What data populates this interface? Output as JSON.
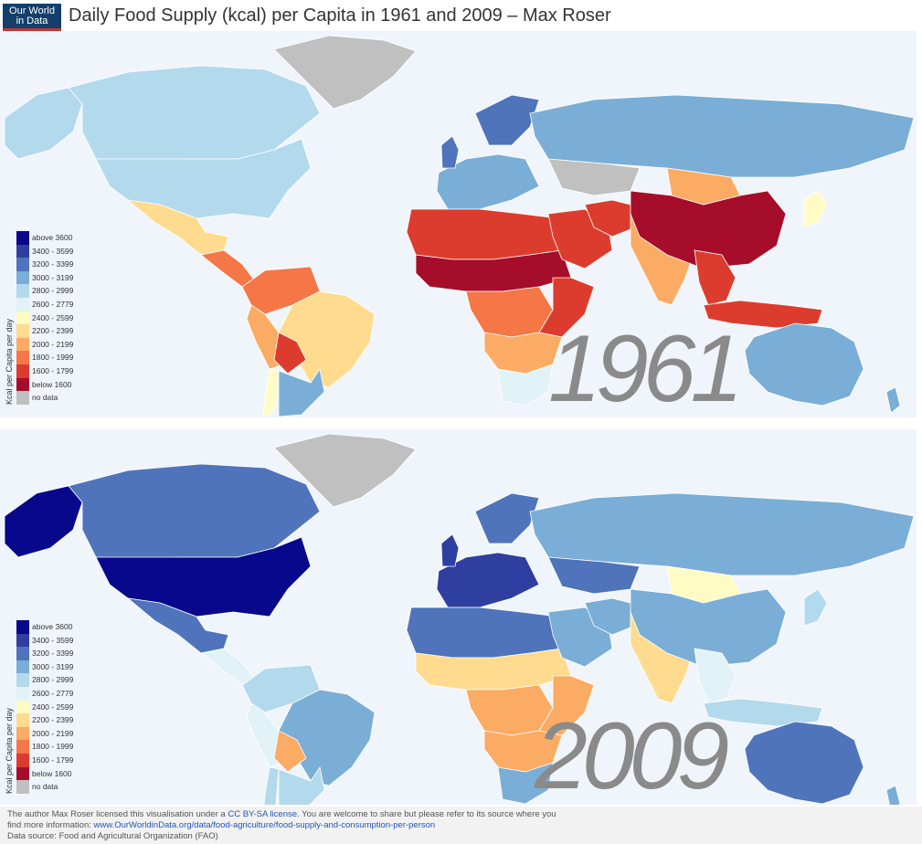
{
  "header": {
    "logo": [
      "Our World",
      "in Data"
    ],
    "title": "Daily Food Supply (kcal) per Capita in 1961 and 2009 – Max Roser"
  },
  "legend": {
    "axis_title": "Kcal per Capita per day",
    "items": [
      {
        "label": "above 3600",
        "color": "#08088c"
      },
      {
        "label": "3400 - 3599",
        "color": "#2e3fa0"
      },
      {
        "label": "3200 - 3399",
        "color": "#4f74bb"
      },
      {
        "label": "3000 - 3199",
        "color": "#7aaed6"
      },
      {
        "label": "2800 - 2999",
        "color": "#b3d9ec"
      },
      {
        "label": "2600 - 2779",
        "color": "#e2f3f7"
      },
      {
        "label": "2400 - 2599",
        "color": "#fffbc4"
      },
      {
        "label": "2200 - 2399",
        "color": "#fedb8f"
      },
      {
        "label": "2000 - 2199",
        "color": "#fbab63"
      },
      {
        "label": "1800 - 1999",
        "color": "#f57646"
      },
      {
        "label": "1600 - 1799",
        "color": "#dc3c2e"
      },
      {
        "label": "below 1600",
        "color": "#a60d2a"
      },
      {
        "label": "no data",
        "color": "#c0c0c0"
      }
    ]
  },
  "maps": [
    {
      "year": "1961",
      "regions": [
        {
          "name": "canada",
          "band": 4
        },
        {
          "name": "usa",
          "band": 4
        },
        {
          "name": "alaska",
          "band": 4
        },
        {
          "name": "greenland",
          "band": 12
        },
        {
          "name": "mexico",
          "band": 7
        },
        {
          "name": "central-america",
          "band": 9
        },
        {
          "name": "colombia-venezuela",
          "band": 9
        },
        {
          "name": "brazil",
          "band": 7
        },
        {
          "name": "peru",
          "band": 8
        },
        {
          "name": "bolivia",
          "band": 10
        },
        {
          "name": "argentina",
          "band": 3
        },
        {
          "name": "chile",
          "band": 6
        },
        {
          "name": "western-europe",
          "band": 3
        },
        {
          "name": "uk",
          "band": 2
        },
        {
          "name": "scandinavia",
          "band": 2
        },
        {
          "name": "russia",
          "band": 3
        },
        {
          "name": "kazakhstan",
          "band": 12
        },
        {
          "name": "north-africa",
          "band": 10
        },
        {
          "name": "sahel",
          "band": 11
        },
        {
          "name": "central-africa",
          "band": 9
        },
        {
          "name": "east-africa",
          "band": 10
        },
        {
          "name": "southern-africa",
          "band": 8
        },
        {
          "name": "south-africa",
          "band": 5
        },
        {
          "name": "middle-east",
          "band": 10
        },
        {
          "name": "iran",
          "band": 10
        },
        {
          "name": "india",
          "band": 8
        },
        {
          "name": "china",
          "band": 11
        },
        {
          "name": "mongolia",
          "band": 8
        },
        {
          "name": "southeast-asia",
          "band": 10
        },
        {
          "name": "indonesia",
          "band": 10
        },
        {
          "name": "japan",
          "band": 6
        },
        {
          "name": "australia",
          "band": 3
        },
        {
          "name": "new-zealand",
          "band": 3
        }
      ]
    },
    {
      "year": "2009",
      "regions": [
        {
          "name": "canada",
          "band": 2
        },
        {
          "name": "usa",
          "band": 0
        },
        {
          "name": "alaska",
          "band": 0
        },
        {
          "name": "greenland",
          "band": 12
        },
        {
          "name": "mexico",
          "band": 2
        },
        {
          "name": "central-america",
          "band": 5
        },
        {
          "name": "colombia-venezuela",
          "band": 4
        },
        {
          "name": "brazil",
          "band": 3
        },
        {
          "name": "peru",
          "band": 5
        },
        {
          "name": "bolivia",
          "band": 8
        },
        {
          "name": "argentina",
          "band": 4
        },
        {
          "name": "chile",
          "band": 4
        },
        {
          "name": "western-europe",
          "band": 1
        },
        {
          "name": "uk",
          "band": 1
        },
        {
          "name": "scandinavia",
          "band": 2
        },
        {
          "name": "russia",
          "band": 3
        },
        {
          "name": "kazakhstan",
          "band": 2
        },
        {
          "name": "north-africa",
          "band": 2
        },
        {
          "name": "sahel",
          "band": 7
        },
        {
          "name": "central-africa",
          "band": 8
        },
        {
          "name": "east-africa",
          "band": 8
        },
        {
          "name": "southern-africa",
          "band": 8
        },
        {
          "name": "south-africa",
          "band": 3
        },
        {
          "name": "middle-east",
          "band": 3
        },
        {
          "name": "iran",
          "band": 3
        },
        {
          "name": "india",
          "band": 7
        },
        {
          "name": "china",
          "band": 3
        },
        {
          "name": "mongolia",
          "band": 6
        },
        {
          "name": "southeast-asia",
          "band": 5
        },
        {
          "name": "indonesia",
          "band": 4
        },
        {
          "name": "japan",
          "band": 4
        },
        {
          "name": "australia",
          "band": 2
        },
        {
          "name": "new-zealand",
          "band": 3
        }
      ]
    }
  ],
  "footer": {
    "line1_prefix": "The author Max Roser licensed this visualisation under a ",
    "license_link": "CC BY-SA license",
    "line1_suffix": ". You are welcome to share but please refer to its source where you",
    "line2_prefix": "find more information: ",
    "source_link": "www.OurWorldinData.org/data/food-agriculture/food-supply-and-consumption-per-person",
    "line3": "Data source: Food and Agricultural Organization (FAO)"
  }
}
